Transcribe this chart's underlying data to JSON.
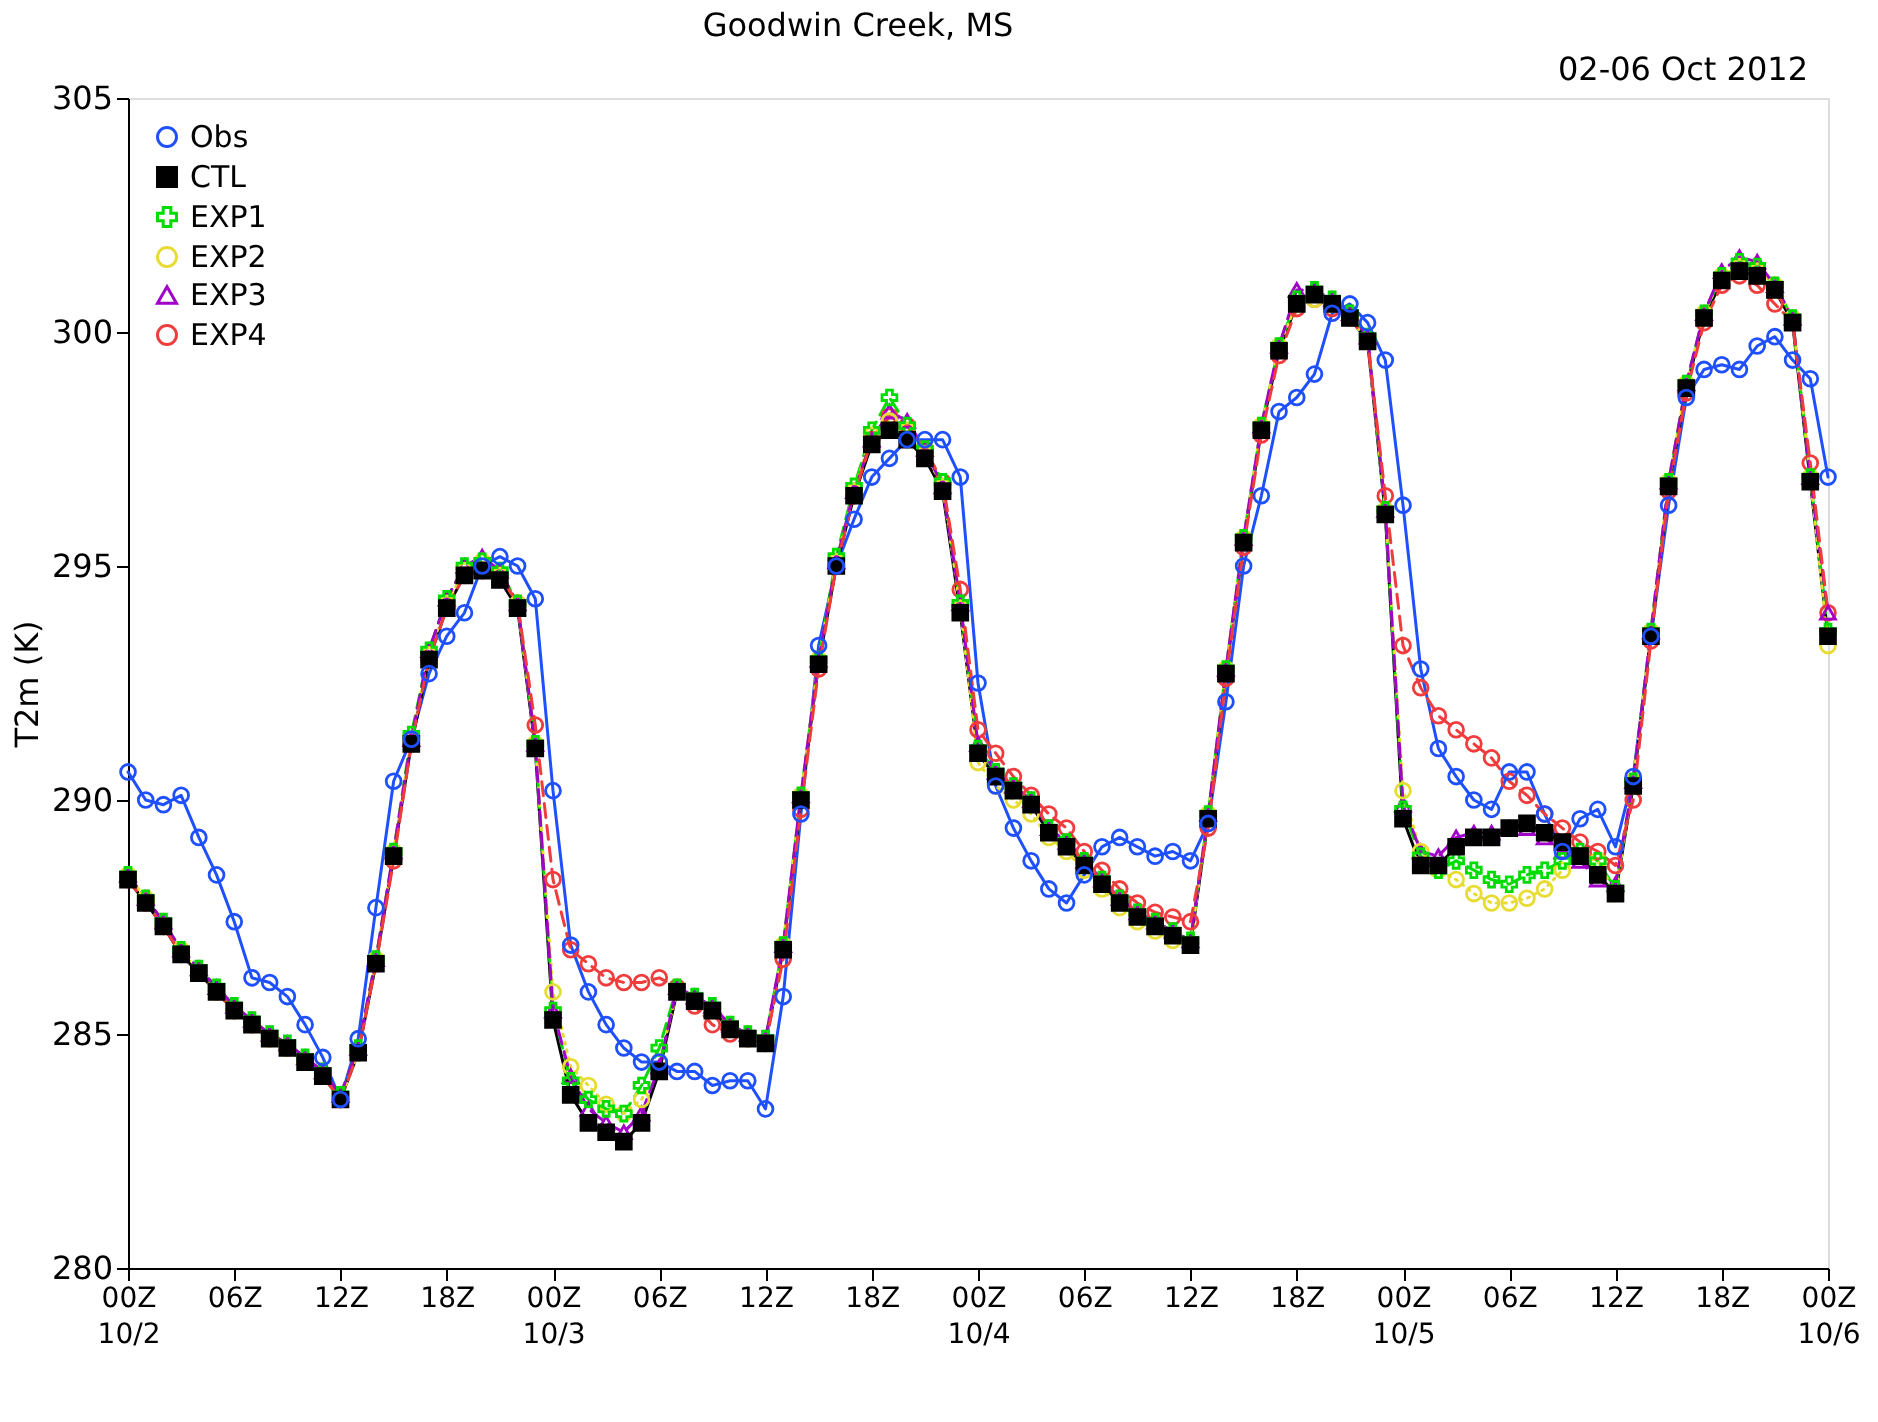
{
  "chart_data": {
    "type": "line",
    "title": "Goodwin Creek, MS",
    "ylabel": "T2m (K)",
    "annotations": [
      "02-06 Oct 2012"
    ],
    "legend": "top left",
    "ylim": [
      280,
      305
    ],
    "yticks": [
      280,
      285,
      290,
      295,
      300,
      305
    ],
    "xlim": [
      "2012-10-02T00:00",
      "2012-10-06T00:00"
    ],
    "xticks": [
      {
        "value": "2012-10-02T00:00",
        "label": "00Z\n10/2"
      },
      {
        "value": "2012-10-02T06:00",
        "label": "06Z"
      },
      {
        "value": "2012-10-02T12:00",
        "label": "12Z"
      },
      {
        "value": "2012-10-02T18:00",
        "label": "18Z"
      },
      {
        "value": "2012-10-03T00:00",
        "label": "00Z\n10/3"
      },
      {
        "value": "2012-10-03T06:00",
        "label": "06Z"
      },
      {
        "value": "2012-10-03T12:00",
        "label": "12Z"
      },
      {
        "value": "2012-10-03T18:00",
        "label": "18Z"
      },
      {
        "value": "2012-10-04T00:00",
        "label": "00Z\n10/4"
      },
      {
        "value": "2012-10-04T06:00",
        "label": "06Z"
      },
      {
        "value": "2012-10-04T12:00",
        "label": "12Z"
      },
      {
        "value": "2012-10-04T18:00",
        "label": "18Z"
      },
      {
        "value": "2012-10-05T00:00",
        "label": "00Z\n10/5"
      },
      {
        "value": "2012-10-05T06:00",
        "label": "06Z"
      },
      {
        "value": "2012-10-05T12:00",
        "label": "12Z"
      },
      {
        "value": "2012-10-05T18:00",
        "label": "18Z"
      },
      {
        "value": "2012-10-06T00:00",
        "label": "00Z\n10/6"
      }
    ],
    "x": [
      "2012-10-02T00:00",
      "2012-10-02T01:00",
      "2012-10-02T02:00",
      "2012-10-02T03:00",
      "2012-10-02T04:00",
      "2012-10-02T05:00",
      "2012-10-02T06:00",
      "2012-10-02T07:00",
      "2012-10-02T08:00",
      "2012-10-02T09:00",
      "2012-10-02T10:00",
      "2012-10-02T11:00",
      "2012-10-02T12:00",
      "2012-10-02T13:00",
      "2012-10-02T14:00",
      "2012-10-02T15:00",
      "2012-10-02T16:00",
      "2012-10-02T17:00",
      "2012-10-02T18:00",
      "2012-10-02T19:00",
      "2012-10-02T20:00",
      "2012-10-02T21:00",
      "2012-10-02T22:00",
      "2012-10-02T23:00",
      "2012-10-03T00:00",
      "2012-10-03T01:00",
      "2012-10-03T02:00",
      "2012-10-03T03:00",
      "2012-10-03T04:00",
      "2012-10-03T05:00",
      "2012-10-03T06:00",
      "2012-10-03T07:00",
      "2012-10-03T08:00",
      "2012-10-03T09:00",
      "2012-10-03T10:00",
      "2012-10-03T11:00",
      "2012-10-03T12:00",
      "2012-10-03T13:00",
      "2012-10-03T14:00",
      "2012-10-03T15:00",
      "2012-10-03T16:00",
      "2012-10-03T17:00",
      "2012-10-03T18:00",
      "2012-10-03T19:00",
      "2012-10-03T20:00",
      "2012-10-03T21:00",
      "2012-10-03T22:00",
      "2012-10-03T23:00",
      "2012-10-04T00:00",
      "2012-10-04T01:00",
      "2012-10-04T02:00",
      "2012-10-04T03:00",
      "2012-10-04T04:00",
      "2012-10-04T05:00",
      "2012-10-04T06:00",
      "2012-10-04T07:00",
      "2012-10-04T08:00",
      "2012-10-04T09:00",
      "2012-10-04T10:00",
      "2012-10-04T11:00",
      "2012-10-04T12:00",
      "2012-10-04T13:00",
      "2012-10-04T14:00",
      "2012-10-04T15:00",
      "2012-10-04T16:00",
      "2012-10-04T17:00",
      "2012-10-04T18:00",
      "2012-10-04T19:00",
      "2012-10-04T20:00",
      "2012-10-04T21:00",
      "2012-10-04T22:00",
      "2012-10-04T23:00",
      "2012-10-05T00:00",
      "2012-10-05T01:00",
      "2012-10-05T02:00",
      "2012-10-05T03:00",
      "2012-10-05T04:00",
      "2012-10-05T05:00",
      "2012-10-05T06:00",
      "2012-10-05T07:00",
      "2012-10-05T08:00",
      "2012-10-05T09:00",
      "2012-10-05T10:00",
      "2012-10-05T11:00",
      "2012-10-05T12:00",
      "2012-10-05T13:00",
      "2012-10-05T14:00",
      "2012-10-05T15:00",
      "2012-10-05T16:00",
      "2012-10-05T17:00",
      "2012-10-05T18:00",
      "2012-10-05T19:00",
      "2012-10-05T20:00",
      "2012-10-05T21:00",
      "2012-10-05T22:00",
      "2012-10-05T23:00",
      "2012-10-06T00:00"
    ],
    "series": [
      {
        "name": "Obs",
        "color": "#1e50ff",
        "marker": "circle",
        "line_style": "solid",
        "values": [
          290.6,
          290.0,
          289.9,
          290.1,
          289.2,
          288.4,
          287.4,
          286.2,
          286.1,
          285.8,
          285.2,
          284.5,
          283.6,
          284.9,
          287.7,
          290.4,
          291.3,
          292.7,
          293.5,
          294.0,
          295.0,
          295.2,
          295.0,
          294.3,
          290.2,
          286.9,
          285.9,
          285.2,
          284.7,
          284.4,
          284.4,
          284.2,
          284.2,
          283.9,
          284.0,
          284.0,
          283.4,
          285.8,
          289.7,
          293.3,
          295.0,
          296.0,
          296.9,
          297.3,
          297.7,
          297.7,
          297.7,
          296.9,
          292.5,
          290.3,
          289.4,
          288.7,
          288.1,
          287.8,
          288.4,
          289.0,
          289.2,
          289.0,
          288.8,
          288.9,
          288.7,
          289.5,
          292.1,
          295.0,
          296.5,
          298.3,
          298.6,
          299.1,
          300.4,
          300.6,
          300.2,
          299.4,
          296.3,
          292.8,
          291.1,
          290.5,
          290.0,
          289.8,
          290.6,
          290.6,
          289.7,
          288.9,
          289.6,
          289.8,
          289.0,
          290.5,
          293.5,
          296.3,
          298.6,
          299.2,
          299.3,
          299.2,
          299.7,
          299.9,
          299.4,
          299.0,
          296.9
        ]
      },
      {
        "name": "CTL",
        "color": "#000000",
        "marker": "square",
        "line_style": "solid",
        "values": [
          288.3,
          287.8,
          287.3,
          286.7,
          286.3,
          285.9,
          285.5,
          285.2,
          284.9,
          284.7,
          284.4,
          284.1,
          283.6,
          284.6,
          286.5,
          288.8,
          291.2,
          293.0,
          294.1,
          294.8,
          294.9,
          294.7,
          294.1,
          291.1,
          285.3,
          283.7,
          283.1,
          282.9,
          282.7,
          283.1,
          284.2,
          285.9,
          285.7,
          285.5,
          285.1,
          284.9,
          284.8,
          286.8,
          290.0,
          292.9,
          295.0,
          296.5,
          297.6,
          297.9,
          297.7,
          297.3,
          296.6,
          294.0,
          291.0,
          290.5,
          290.2,
          289.9,
          289.3,
          289.0,
          288.6,
          288.2,
          287.8,
          287.5,
          287.3,
          287.1,
          286.9,
          289.6,
          292.7,
          295.5,
          297.9,
          299.6,
          300.6,
          300.8,
          300.6,
          300.3,
          299.8,
          296.1,
          289.6,
          288.6,
          288.6,
          289.0,
          289.2,
          289.2,
          289.4,
          289.5,
          289.3,
          289.1,
          288.8,
          288.4,
          288.0,
          290.3,
          293.5,
          296.7,
          298.8,
          300.3,
          301.1,
          301.3,
          301.2,
          300.9,
          300.2,
          296.8,
          293.5
        ]
      },
      {
        "name": "EXP1",
        "color": "#00dc00",
        "marker": "cross",
        "line_style": "dashed",
        "values": [
          288.4,
          287.9,
          287.4,
          286.8,
          286.4,
          286.0,
          285.6,
          285.3,
          285.0,
          284.8,
          284.5,
          284.2,
          283.7,
          284.7,
          286.6,
          288.9,
          291.4,
          293.2,
          294.3,
          295.0,
          295.1,
          294.9,
          294.2,
          291.2,
          285.5,
          284.0,
          283.6,
          283.4,
          283.3,
          283.9,
          284.7,
          286.0,
          285.8,
          285.6,
          285.2,
          285.0,
          284.9,
          286.9,
          290.1,
          293.0,
          295.2,
          296.7,
          297.9,
          298.6,
          298.0,
          297.5,
          296.8,
          294.2,
          291.1,
          290.6,
          290.3,
          290.0,
          289.4,
          289.1,
          288.7,
          288.3,
          287.9,
          287.6,
          287.4,
          287.2,
          287.0,
          289.7,
          292.8,
          295.6,
          298.0,
          299.7,
          300.7,
          300.9,
          300.7,
          300.4,
          299.9,
          296.2,
          289.8,
          288.8,
          288.5,
          288.7,
          288.5,
          288.3,
          288.2,
          288.4,
          288.5,
          288.7,
          288.9,
          288.7,
          288.1,
          290.4,
          293.6,
          296.8,
          298.9,
          300.4,
          301.2,
          301.5,
          301.4,
          301.0,
          300.3,
          296.9,
          293.6
        ]
      },
      {
        "name": "EXP2",
        "color": "#e6dc32",
        "marker": "circle",
        "line_style": "dotted",
        "values": [
          288.4,
          287.9,
          287.3,
          286.8,
          286.3,
          285.9,
          285.5,
          285.2,
          284.9,
          284.7,
          284.4,
          284.1,
          283.6,
          284.6,
          286.6,
          288.9,
          291.3,
          293.1,
          294.2,
          294.9,
          295.1,
          294.8,
          294.2,
          291.2,
          285.9,
          284.3,
          283.9,
          283.5,
          283.3,
          283.6,
          284.4,
          285.9,
          285.7,
          285.5,
          285.1,
          284.9,
          284.8,
          286.9,
          290.1,
          293.0,
          295.1,
          296.6,
          297.8,
          298.1,
          297.9,
          297.4,
          296.7,
          294.1,
          290.8,
          290.3,
          290.0,
          289.7,
          289.2,
          288.9,
          288.5,
          288.1,
          287.7,
          287.4,
          287.2,
          287.0,
          286.9,
          289.7,
          292.8,
          295.6,
          298.0,
          299.7,
          300.6,
          300.7,
          300.6,
          300.3,
          299.8,
          296.2,
          290.2,
          288.9,
          288.5,
          288.3,
          288.0,
          287.8,
          287.8,
          287.9,
          288.1,
          288.5,
          288.8,
          288.7,
          288.0,
          290.4,
          293.6,
          296.8,
          298.9,
          300.4,
          301.2,
          301.4,
          301.3,
          301.0,
          300.3,
          296.9,
          293.3
        ]
      },
      {
        "name": "EXP3",
        "color": "#a000c8",
        "marker": "triangle",
        "line_style": "dashed",
        "values": [
          288.4,
          287.9,
          287.4,
          286.8,
          286.4,
          286.0,
          285.6,
          285.3,
          285.0,
          284.8,
          284.5,
          284.2,
          283.7,
          284.7,
          286.6,
          288.9,
          291.3,
          293.2,
          294.3,
          295.0,
          295.2,
          294.9,
          294.2,
          291.2,
          285.5,
          284.1,
          283.4,
          283.1,
          282.9,
          283.3,
          284.3,
          286.0,
          285.8,
          285.6,
          285.2,
          285.0,
          284.9,
          286.9,
          290.1,
          293.0,
          295.1,
          296.6,
          297.7,
          298.3,
          298.1,
          297.5,
          296.7,
          294.2,
          291.2,
          290.6,
          290.3,
          290.0,
          289.4,
          289.1,
          288.7,
          288.3,
          287.9,
          287.6,
          287.4,
          287.2,
          287.0,
          289.7,
          292.8,
          295.6,
          298.0,
          299.7,
          300.9,
          300.9,
          300.7,
          300.4,
          299.9,
          296.2,
          289.9,
          288.9,
          288.8,
          289.2,
          289.3,
          289.3,
          289.4,
          289.4,
          289.2,
          288.9,
          288.7,
          288.3,
          288.2,
          290.4,
          293.6,
          296.8,
          298.9,
          300.4,
          301.3,
          301.6,
          301.5,
          301.0,
          300.3,
          296.9,
          294.0
        ]
      },
      {
        "name": "EXP4",
        "color": "#f03c3c",
        "marker": "circle",
        "line_style": "dashed",
        "values": [
          288.3,
          287.8,
          287.3,
          286.7,
          286.3,
          285.9,
          285.5,
          285.2,
          284.9,
          284.7,
          284.4,
          284.1,
          283.6,
          284.6,
          286.5,
          288.7,
          291.2,
          293.0,
          294.1,
          294.8,
          294.9,
          294.8,
          294.2,
          291.6,
          288.3,
          286.8,
          286.5,
          286.2,
          286.1,
          286.1,
          286.2,
          286.0,
          285.6,
          285.2,
          285.0,
          284.9,
          284.8,
          286.6,
          289.8,
          292.8,
          295.0,
          296.5,
          297.7,
          298.2,
          298.0,
          297.5,
          296.8,
          294.5,
          291.5,
          291.0,
          290.5,
          290.1,
          289.7,
          289.4,
          288.9,
          288.5,
          288.1,
          287.8,
          287.6,
          287.5,
          287.4,
          289.4,
          292.6,
          295.4,
          297.8,
          299.5,
          300.5,
          300.7,
          300.5,
          300.3,
          299.8,
          296.5,
          293.3,
          292.4,
          291.8,
          291.5,
          291.2,
          290.9,
          290.4,
          290.1,
          289.7,
          289.4,
          289.1,
          288.9,
          288.6,
          290.0,
          293.4,
          296.6,
          298.7,
          300.2,
          301.0,
          301.2,
          301.0,
          300.6,
          300.2,
          297.2,
          294.0
        ]
      }
    ]
  }
}
